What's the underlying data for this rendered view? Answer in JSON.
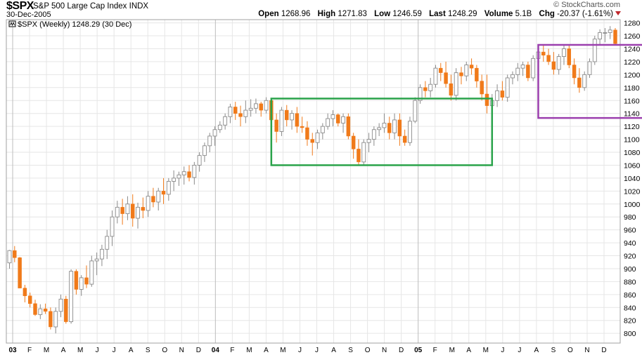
{
  "header": {
    "symbol": "$SPX",
    "description": "S&P 500 Large Cap Index",
    "exchange": "INDX",
    "date": "30-Dec-2005",
    "brand": "© StockCharts.com",
    "open_label": "Open",
    "open": "1268.96",
    "high_label": "High",
    "high": "1271.83",
    "low_label": "Low",
    "low": "1246.59",
    "last_label": "Last",
    "last": "1248.29",
    "volume_label": "Volume",
    "volume": "5.1B",
    "chg_label": "Chg",
    "chg": "-20.37 (-1.61%)"
  },
  "chart_data": {
    "type": "candlestick",
    "legend": "$SPX (Weekly) 1248.29 (30 Dec)",
    "ylim": [
      785,
      1285
    ],
    "y_ticks": [
      800,
      820,
      840,
      860,
      880,
      900,
      920,
      940,
      960,
      980,
      1000,
      1020,
      1040,
      1060,
      1080,
      1100,
      1120,
      1140,
      1160,
      1180,
      1200,
      1220,
      1240,
      1260,
      1280
    ],
    "x_ticks": [
      "03",
      "F",
      "M",
      "A",
      "M",
      "J",
      "J",
      "A",
      "S",
      "O",
      "N",
      "D",
      "04",
      "F",
      "M",
      "A",
      "M",
      "J",
      "J",
      "A",
      "S",
      "O",
      "N",
      "D",
      "05",
      "F",
      "M",
      "A",
      "M",
      "J",
      "J",
      "A",
      "S",
      "O",
      "N",
      "D"
    ],
    "year_ticks": [
      "03",
      "04",
      "05"
    ],
    "grid": true,
    "colors": {
      "up": "#8a8a8a",
      "down": "#f07a1a",
      "box_2004": "#2aa34a",
      "box_2005": "#9b3fae"
    },
    "boxes": [
      {
        "name": "2004 range",
        "x_from": 51,
        "x_to": 94,
        "y_from": 1060,
        "y_to": 1163
      },
      {
        "name": "2005 range",
        "x_from": 103,
        "x_to": 147,
        "y_from": 1133,
        "y_to": 1246
      }
    ],
    "series": [
      {
        "values": [
          [
            909,
            929,
            900,
            928
          ],
          [
            928,
            935,
            910,
            917
          ],
          [
            917,
            918,
            870,
            870
          ],
          [
            870,
            875,
            848,
            858
          ],
          [
            858,
            863,
            840,
            846
          ],
          [
            846,
            852,
            827,
            829
          ],
          [
            829,
            845,
            822,
            838
          ],
          [
            838,
            846,
            830,
            834
          ],
          [
            834,
            840,
            806,
            810
          ],
          [
            810,
            840,
            800,
            834
          ],
          [
            834,
            860,
            825,
            853
          ],
          [
            853,
            858,
            815,
            818
          ],
          [
            818,
            899,
            815,
            896
          ],
          [
            896,
            899,
            860,
            868
          ],
          [
            868,
            890,
            858,
            886
          ],
          [
            886,
            905,
            870,
            876
          ],
          [
            876,
            920,
            872,
            912
          ],
          [
            912,
            925,
            890,
            915
          ],
          [
            915,
            937,
            904,
            930
          ],
          [
            930,
            960,
            915,
            950
          ],
          [
            950,
            990,
            935,
            980
          ],
          [
            980,
            1005,
            970,
            995
          ],
          [
            995,
            1008,
            968,
            985
          ],
          [
            985,
            1012,
            975,
            1000
          ],
          [
            1000,
            1015,
            965,
            978
          ],
          [
            978,
            1002,
            962,
            995
          ],
          [
            995,
            1010,
            978,
            990
          ],
          [
            990,
            1020,
            980,
            1012
          ],
          [
            1012,
            1025,
            995,
            1003
          ],
          [
            1003,
            1025,
            990,
            1020
          ],
          [
            1020,
            1040,
            1000,
            1015
          ],
          [
            1015,
            1040,
            1005,
            1035
          ],
          [
            1035,
            1052,
            1020,
            1040
          ],
          [
            1040,
            1050,
            1028,
            1045
          ],
          [
            1045,
            1058,
            1030,
            1050
          ],
          [
            1050,
            1060,
            1035,
            1041
          ],
          [
            1041,
            1065,
            1030,
            1060
          ],
          [
            1060,
            1080,
            1050,
            1075
          ],
          [
            1075,
            1095,
            1065,
            1090
          ],
          [
            1090,
            1110,
            1080,
            1105
          ],
          [
            1105,
            1120,
            1090,
            1115
          ],
          [
            1115,
            1128,
            1110,
            1122
          ],
          [
            1122,
            1140,
            1115,
            1135
          ],
          [
            1135,
            1155,
            1125,
            1150
          ],
          [
            1150,
            1158,
            1130,
            1140
          ],
          [
            1140,
            1152,
            1120,
            1135
          ],
          [
            1135,
            1160,
            1125,
            1145
          ],
          [
            1145,
            1162,
            1135,
            1148
          ],
          [
            1148,
            1163,
            1140,
            1155
          ],
          [
            1155,
            1158,
            1135,
            1145
          ],
          [
            1145,
            1165,
            1140,
            1160
          ],
          [
            1160,
            1162,
            1125,
            1130
          ],
          [
            1130,
            1140,
            1095,
            1112
          ],
          [
            1112,
            1150,
            1105,
            1145
          ],
          [
            1145,
            1153,
            1120,
            1130
          ],
          [
            1130,
            1145,
            1115,
            1140
          ],
          [
            1140,
            1150,
            1110,
            1120
          ],
          [
            1120,
            1135,
            1110,
            1118
          ],
          [
            1118,
            1128,
            1090,
            1100
          ],
          [
            1100,
            1110,
            1075,
            1095
          ],
          [
            1095,
            1115,
            1085,
            1110
          ],
          [
            1110,
            1125,
            1100,
            1120
          ],
          [
            1120,
            1140,
            1115,
            1132
          ],
          [
            1132,
            1145,
            1120,
            1138
          ],
          [
            1138,
            1140,
            1120,
            1125
          ],
          [
            1125,
            1140,
            1110,
            1135
          ],
          [
            1135,
            1140,
            1100,
            1105
          ],
          [
            1105,
            1110,
            1070,
            1085
          ],
          [
            1085,
            1100,
            1060,
            1065
          ],
          [
            1065,
            1100,
            1060,
            1095
          ],
          [
            1095,
            1110,
            1080,
            1100
          ],
          [
            1100,
            1120,
            1090,
            1115
          ],
          [
            1115,
            1125,
            1105,
            1118
          ],
          [
            1118,
            1140,
            1110,
            1125
          ],
          [
            1125,
            1135,
            1100,
            1110
          ],
          [
            1110,
            1140,
            1100,
            1130
          ],
          [
            1130,
            1140,
            1090,
            1105
          ],
          [
            1105,
            1115,
            1090,
            1095
          ],
          [
            1095,
            1135,
            1090,
            1128
          ],
          [
            1128,
            1165,
            1125,
            1160
          ],
          [
            1160,
            1185,
            1155,
            1180
          ],
          [
            1180,
            1190,
            1165,
            1175
          ],
          [
            1175,
            1195,
            1165,
            1185
          ],
          [
            1185,
            1215,
            1180,
            1210
          ],
          [
            1210,
            1218,
            1190,
            1203
          ],
          [
            1203,
            1220,
            1180,
            1186
          ],
          [
            1186,
            1200,
            1160,
            1168
          ],
          [
            1168,
            1210,
            1160,
            1203
          ],
          [
            1203,
            1212,
            1185,
            1198
          ],
          [
            1198,
            1220,
            1190,
            1215
          ],
          [
            1215,
            1225,
            1200,
            1210
          ],
          [
            1210,
            1215,
            1180,
            1190
          ],
          [
            1190,
            1200,
            1160,
            1170
          ],
          [
            1170,
            1200,
            1140,
            1152
          ],
          [
            1152,
            1170,
            1137,
            1160
          ],
          [
            1160,
            1185,
            1150,
            1175
          ],
          [
            1175,
            1190,
            1160,
            1165
          ],
          [
            1165,
            1200,
            1158,
            1195
          ],
          [
            1195,
            1205,
            1185,
            1200
          ],
          [
            1200,
            1218,
            1190,
            1210
          ],
          [
            1210,
            1220,
            1198,
            1215
          ],
          [
            1215,
            1220,
            1190,
            1195
          ],
          [
            1195,
            1230,
            1190,
            1225
          ],
          [
            1225,
            1245,
            1215,
            1235
          ],
          [
            1235,
            1245,
            1220,
            1230
          ],
          [
            1230,
            1240,
            1215,
            1220
          ],
          [
            1220,
            1235,
            1200,
            1208
          ],
          [
            1208,
            1232,
            1200,
            1228
          ],
          [
            1228,
            1245,
            1215,
            1240
          ],
          [
            1240,
            1245,
            1210,
            1215
          ],
          [
            1215,
            1225,
            1185,
            1195
          ],
          [
            1195,
            1210,
            1172,
            1180
          ],
          [
            1180,
            1205,
            1175,
            1200
          ],
          [
            1200,
            1225,
            1195,
            1220
          ],
          [
            1220,
            1260,
            1215,
            1255
          ],
          [
            1255,
            1270,
            1245,
            1265
          ],
          [
            1265,
            1272,
            1250,
            1265
          ],
          [
            1265,
            1275,
            1255,
            1269
          ],
          [
            1269,
            1272,
            1246,
            1248
          ]
        ]
      }
    ]
  }
}
